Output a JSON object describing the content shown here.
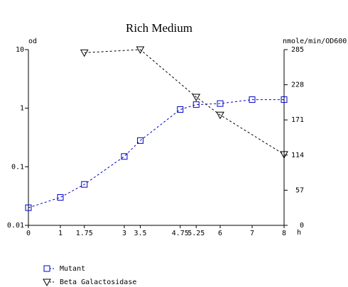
{
  "chart_data": {
    "type": "line",
    "title": "Rich Medium",
    "ylabel": "od",
    "y2label": "nmole/min/OD600",
    "xlabel": "h",
    "xlim": [
      0,
      8
    ],
    "xticks": [
      0,
      1,
      1.75,
      3,
      3.5,
      4.75,
      5.25,
      6,
      7,
      8
    ],
    "ylim": [
      0.01,
      10
    ],
    "yticks": [
      0.01,
      0.1,
      1,
      10
    ],
    "ylog": true,
    "y2lim": [
      0,
      285
    ],
    "y2ticks": [
      0,
      57,
      114,
      171,
      228,
      285
    ],
    "series": [
      {
        "name": "Mutant",
        "color": "#0000cc",
        "marker": "square",
        "x": [
          0,
          1,
          1.75,
          3,
          3.5,
          4.75,
          5.25,
          6,
          7,
          8
        ],
        "values": [
          0.02,
          0.03,
          0.05,
          0.15,
          0.28,
          0.95,
          1.15,
          1.2,
          1.4,
          1.4
        ]
      },
      {
        "name": "Beta Galactosidase",
        "color": "#000000",
        "marker": "triangle-down",
        "axis": "y2",
        "x": [
          1.75,
          3.5,
          5.25,
          6,
          8
        ],
        "values": [
          280,
          285,
          208,
          179,
          115
        ]
      }
    ]
  }
}
